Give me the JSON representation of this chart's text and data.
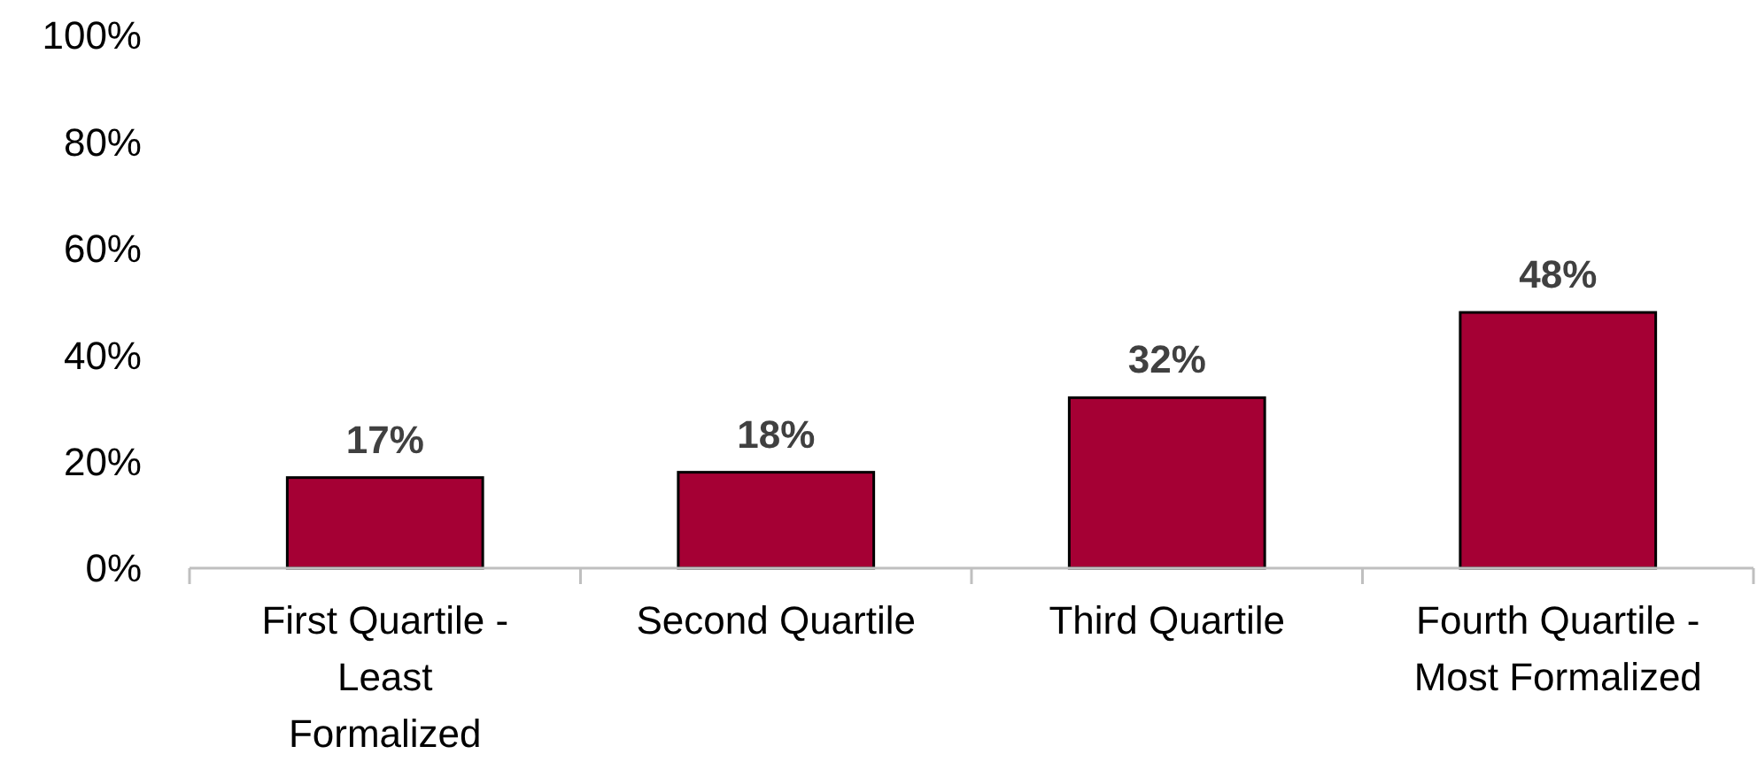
{
  "chart_data": {
    "type": "bar",
    "categories": [
      "First Quartile -\nLeast\nFormalized",
      "Second Quartile",
      "Third Quartile",
      "Fourth Quartile -\nMost Formalized"
    ],
    "values": [
      17,
      18,
      32,
      48
    ],
    "value_labels": [
      "17%",
      "18%",
      "32%",
      "48%"
    ],
    "color": "#a50034",
    "ylim": [
      0,
      100
    ],
    "yticks": [
      {
        "value": 0,
        "label": "0%"
      },
      {
        "value": 20,
        "label": "20%"
      },
      {
        "value": 40,
        "label": "40%"
      },
      {
        "value": 60,
        "label": "60%"
      },
      {
        "value": 80,
        "label": "80%"
      },
      {
        "value": 100,
        "label": "100%"
      }
    ],
    "grid": false
  }
}
